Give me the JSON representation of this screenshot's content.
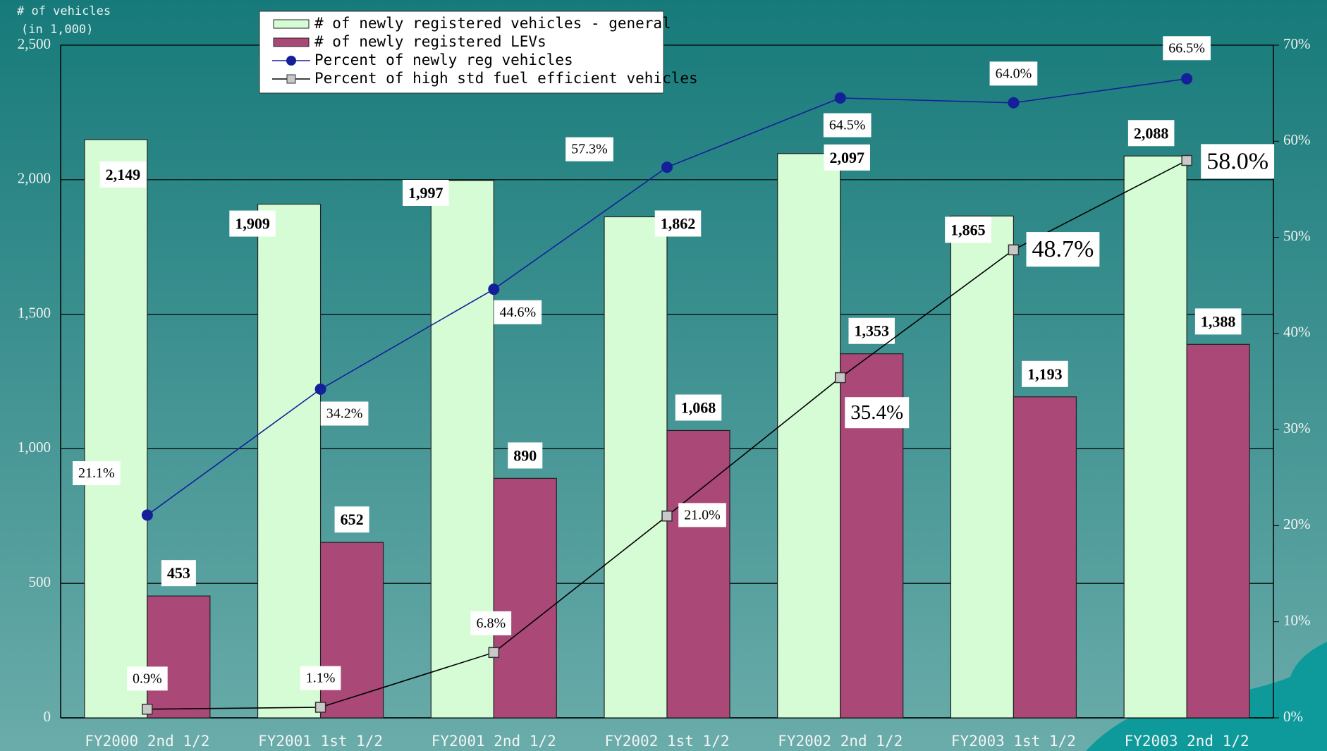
{
  "chart_data": {
    "type": "bar",
    "ylabel": "# of vehicles",
    "ylabel_unit": "(in 1,000)",
    "categories": [
      "FY2000 2nd 1/2",
      "FY2001 1st 1/2",
      "FY2001 2nd 1/2",
      "FY2002 1st 1/2",
      "FY2002 2nd 1/2",
      "FY2003 1st 1/2",
      "FY2003 2nd 1/2"
    ],
    "series": [
      {
        "name": "# of newly registered vehicles - general",
        "type": "bar",
        "color": "#d6fcd6",
        "values": [
          2149,
          1909,
          1997,
          1862,
          2097,
          1865,
          2088
        ],
        "value_labels": [
          "2,149",
          "1,909",
          "1,997",
          "1,862",
          "2,097",
          "1,865",
          "2,088"
        ]
      },
      {
        "name": "# of newly registered LEVs",
        "type": "bar",
        "color": "#aa4877",
        "values": [
          453,
          652,
          890,
          1068,
          1353,
          1193,
          1388
        ],
        "value_labels": [
          "453",
          "652",
          "890",
          "1,068",
          "1,353",
          "1,193",
          "1,388"
        ]
      },
      {
        "name": "Percent of newly reg vehicles",
        "type": "line",
        "axis": "y2",
        "color": "#14209a",
        "marker": "circle",
        "values": [
          21.1,
          34.2,
          44.6,
          57.3,
          64.5,
          64.0,
          66.5
        ],
        "value_labels": [
          "21.1%",
          "34.2%",
          "44.6%",
          "57.3%",
          "64.5%",
          "64.0%",
          "66.5%"
        ]
      },
      {
        "name": "Percent of high std fuel efficient vehicles",
        "type": "line",
        "axis": "y2",
        "color": "#000000",
        "marker": "square",
        "values": [
          0.9,
          1.1,
          6.8,
          21.0,
          35.4,
          48.7,
          58.0
        ],
        "value_labels": [
          "0.9%",
          "1.1%",
          "6.8%",
          "21.0%",
          "35.4%",
          "48.7%",
          "58.0%"
        ]
      }
    ],
    "ylim": [
      0,
      2500
    ],
    "yticks": [
      0,
      500,
      {
        "value": 1000,
        "label": "1,000"
      },
      {
        "value": 1500,
        "label": "1,500"
      },
      {
        "value": 2000,
        "label": "2,000"
      },
      {
        "value": 2500,
        "label": "2,500"
      }
    ],
    "y2lim": [
      0,
      70
    ],
    "y2ticks": [
      {
        "value": 0,
        "label": "0%"
      },
      {
        "value": 10,
        "label": "10%"
      },
      {
        "value": 20,
        "label": "20%"
      },
      {
        "value": 30,
        "label": "30%"
      },
      {
        "value": 40,
        "label": "40%"
      },
      {
        "value": 50,
        "label": "50%"
      },
      {
        "value": 60,
        "label": "60%"
      },
      {
        "value": 70,
        "label": "70%"
      }
    ],
    "grid": true,
    "legend": "top"
  }
}
